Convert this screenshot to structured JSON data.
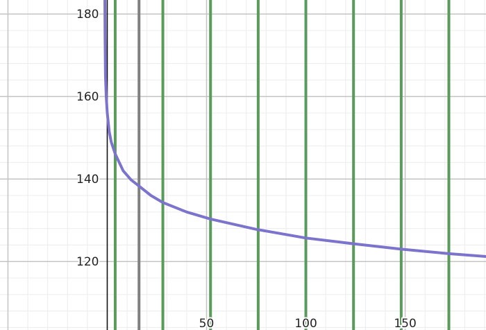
{
  "chart_data": {
    "type": "line",
    "title": "",
    "xlabel": "",
    "ylabel": "",
    "xlim": [
      -54,
      190.7
    ],
    "ylim": [
      103.4,
      183.4
    ],
    "grid": true,
    "x_major_step": 50,
    "x_minor_step": 10,
    "y_major_step": 20,
    "y_minor_step": 4,
    "x_tick_labels": [
      "50",
      "100",
      "150"
    ],
    "y_tick_labels": [
      "120",
      "140",
      "160",
      "180"
    ],
    "x_ticks": [
      50,
      100,
      150
    ],
    "y_ticks": [
      120,
      140,
      160,
      180
    ],
    "curve": {
      "color": "#7b73cc",
      "points": [
        [
          -1.2,
          185
        ],
        [
          -1.1,
          175
        ],
        [
          -0.9,
          165
        ],
        [
          -0.5,
          160
        ],
        [
          0,
          156
        ],
        [
          1,
          151.5
        ],
        [
          2,
          149
        ],
        [
          4,
          146.1
        ],
        [
          8,
          142
        ],
        [
          12,
          139.8
        ],
        [
          16,
          138.3
        ],
        [
          22,
          136
        ],
        [
          28,
          134.3
        ],
        [
          40,
          132
        ],
        [
          52,
          130.3
        ],
        [
          75,
          127.8
        ],
        [
          100,
          125.7
        ],
        [
          124,
          124.3
        ],
        [
          148,
          123
        ],
        [
          172,
          121.9
        ],
        [
          191,
          121.2
        ]
      ]
    },
    "vertical_lines": [
      {
        "x": 4,
        "color": "#5a9a5a"
      },
      {
        "x": 16,
        "color": "#808080"
      },
      {
        "x": 28,
        "color": "#5a9a5a"
      },
      {
        "x": 52,
        "color": "#5a9a5a"
      },
      {
        "x": 76,
        "color": "#5a9a5a"
      },
      {
        "x": 100,
        "color": "#5a9a5a"
      },
      {
        "x": 124,
        "color": "#5a9a5a"
      },
      {
        "x": 148,
        "color": "#5a9a5a"
      },
      {
        "x": 172,
        "color": "#5a9a5a"
      }
    ]
  }
}
